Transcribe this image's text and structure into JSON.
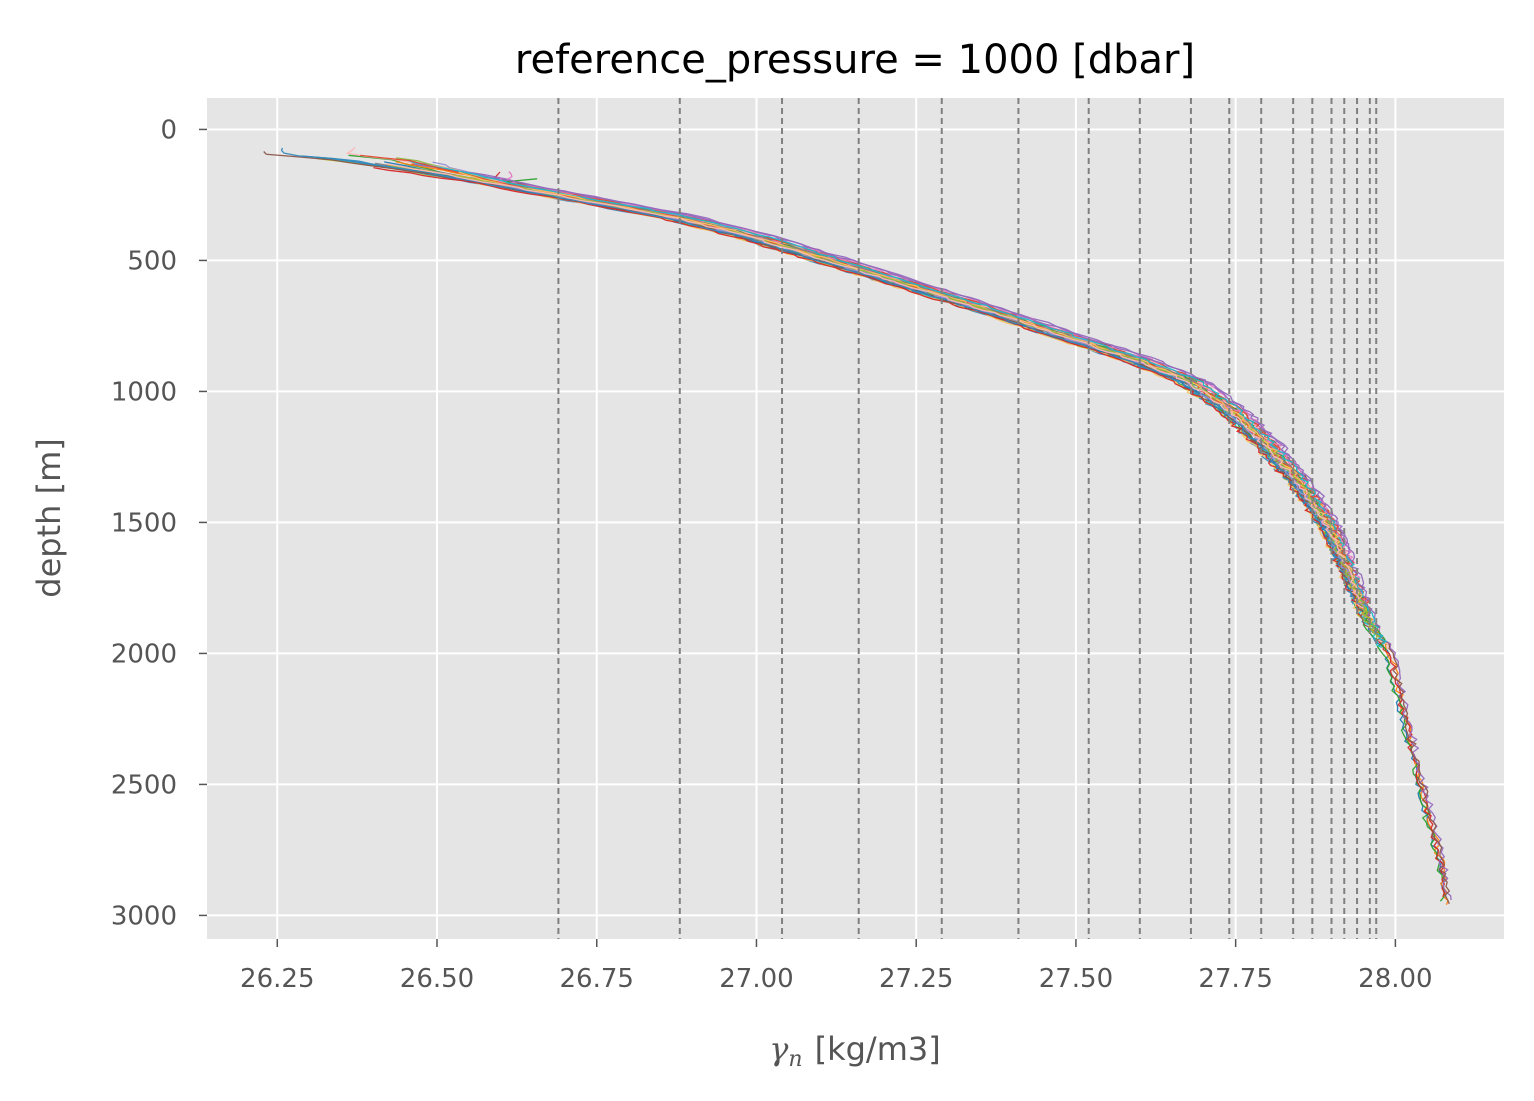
{
  "chart_data": {
    "type": "line",
    "title": "reference_pressure = 1000 [dbar]",
    "xlabel_symbol": "γ",
    "xlabel_subscript": "n",
    "xlabel_units": "[kg/m3]",
    "ylabel": "depth [m]",
    "xlim": [
      26.14,
      28.17
    ],
    "ylim": [
      3090,
      -120
    ],
    "y_inverted": true,
    "grid": true,
    "x_ticks": [
      26.25,
      26.5,
      26.75,
      27.0,
      27.25,
      27.5,
      27.75,
      28.0
    ],
    "x_tick_labels": [
      "26.25",
      "26.50",
      "26.75",
      "27.00",
      "27.25",
      "27.50",
      "27.75",
      "28.00"
    ],
    "y_ticks": [
      0,
      500,
      1000,
      1500,
      2000,
      2500,
      3000
    ],
    "y_tick_labels": [
      "0",
      "500",
      "1000",
      "1500",
      "2000",
      "2500",
      "3000"
    ],
    "reference_density_levels": [
      26.69,
      26.88,
      27.04,
      27.16,
      27.29,
      27.41,
      27.52,
      27.6,
      27.68,
      27.74,
      27.79,
      27.84,
      27.87,
      27.9,
      27.92,
      27.94,
      27.96,
      27.97
    ],
    "reference_line_color": "#808080",
    "colors": [
      "#1f77b4",
      "#ff7f0e",
      "#2ca02c",
      "#d62728",
      "#9467bd",
      "#8c564b",
      "#e377c2",
      "#7f7f7f",
      "#bcbd22",
      "#17becf",
      "#e24a33",
      "#348abd",
      "#988ed5",
      "#fbc15e",
      "#8eba42",
      "#ffb5b8"
    ],
    "profile_count": 32,
    "deep_profile_count": 6,
    "mean_profile": {
      "x": [
        26.28,
        26.38,
        26.5,
        26.62,
        26.75,
        26.88,
        27.0,
        27.12,
        27.25,
        27.38,
        27.5,
        27.6,
        27.68,
        27.75,
        27.8,
        27.85,
        27.9,
        27.93,
        27.96,
        27.99,
        28.01,
        28.03,
        28.05,
        28.07,
        28.08
      ],
      "y": [
        95,
        115,
        160,
        215,
        275,
        335,
        410,
        500,
        600,
        700,
        800,
        880,
        960,
        1080,
        1200,
        1340,
        1520,
        1700,
        1880,
        2000,
        2200,
        2400,
        2600,
        2800,
        2950
      ]
    }
  },
  "colors": {
    "background": "#ffffff",
    "plot_area": "#e5e5e5",
    "grid": "#ffffff",
    "tick_text": "#555555",
    "title_text": "#000000"
  }
}
